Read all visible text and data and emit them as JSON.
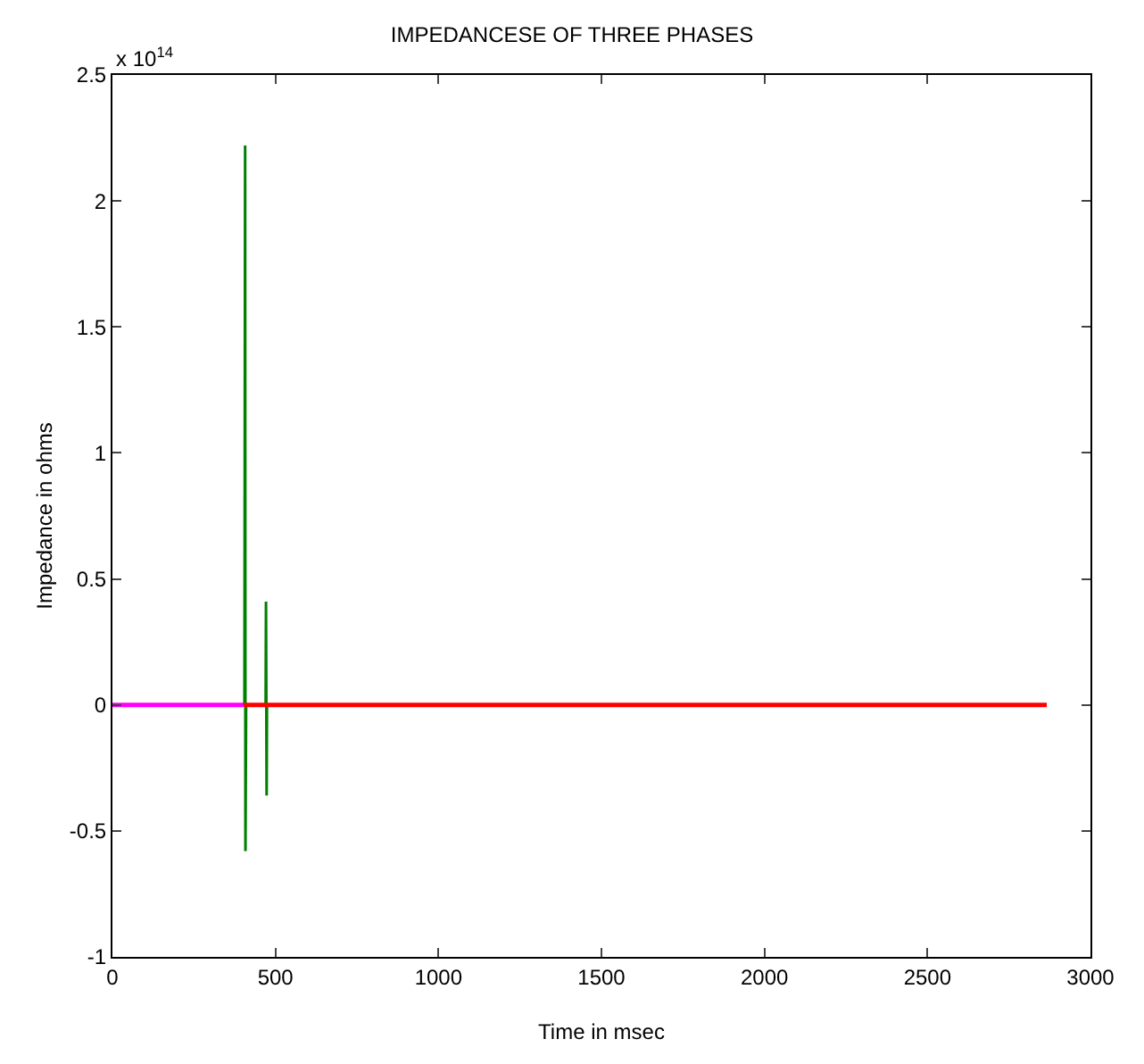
{
  "chart_data": {
    "type": "line",
    "title": "IMPEDANCESE OF THREE PHASES",
    "xlabel": "Time in msec",
    "ylabel": "Impedance in ohms",
    "annotations": [
      "x 10$^{14}$"
    ],
    "series": [
      {
        "color": "#ff00ff",
        "x": [
          0,
          403
        ],
        "values": [
          0,
          0
        ]
      },
      {
        "color": "#008000",
        "x": [
          405,
          407,
          408,
          410,
          470,
          471,
          473,
          474
        ],
        "values": [
          0,
          2.22,
          -0.58,
          0,
          0,
          0.41,
          -0.36,
          0
        ]
      },
      {
        "color": "#ff0000",
        "x": [
          403,
          2866
        ],
        "values": [
          0,
          0
        ]
      }
    ],
    "xlim": [
      0,
      3000
    ],
    "xticks": [
      0,
      500,
      1000,
      1500,
      2000,
      2500,
      3000
    ],
    "ylim": [
      -1,
      2.5
    ],
    "yticks": [
      -1,
      -0.5,
      0,
      0.5,
      1,
      1.5,
      2,
      2.5
    ],
    "marker": "none",
    "line_style": "solid"
  }
}
